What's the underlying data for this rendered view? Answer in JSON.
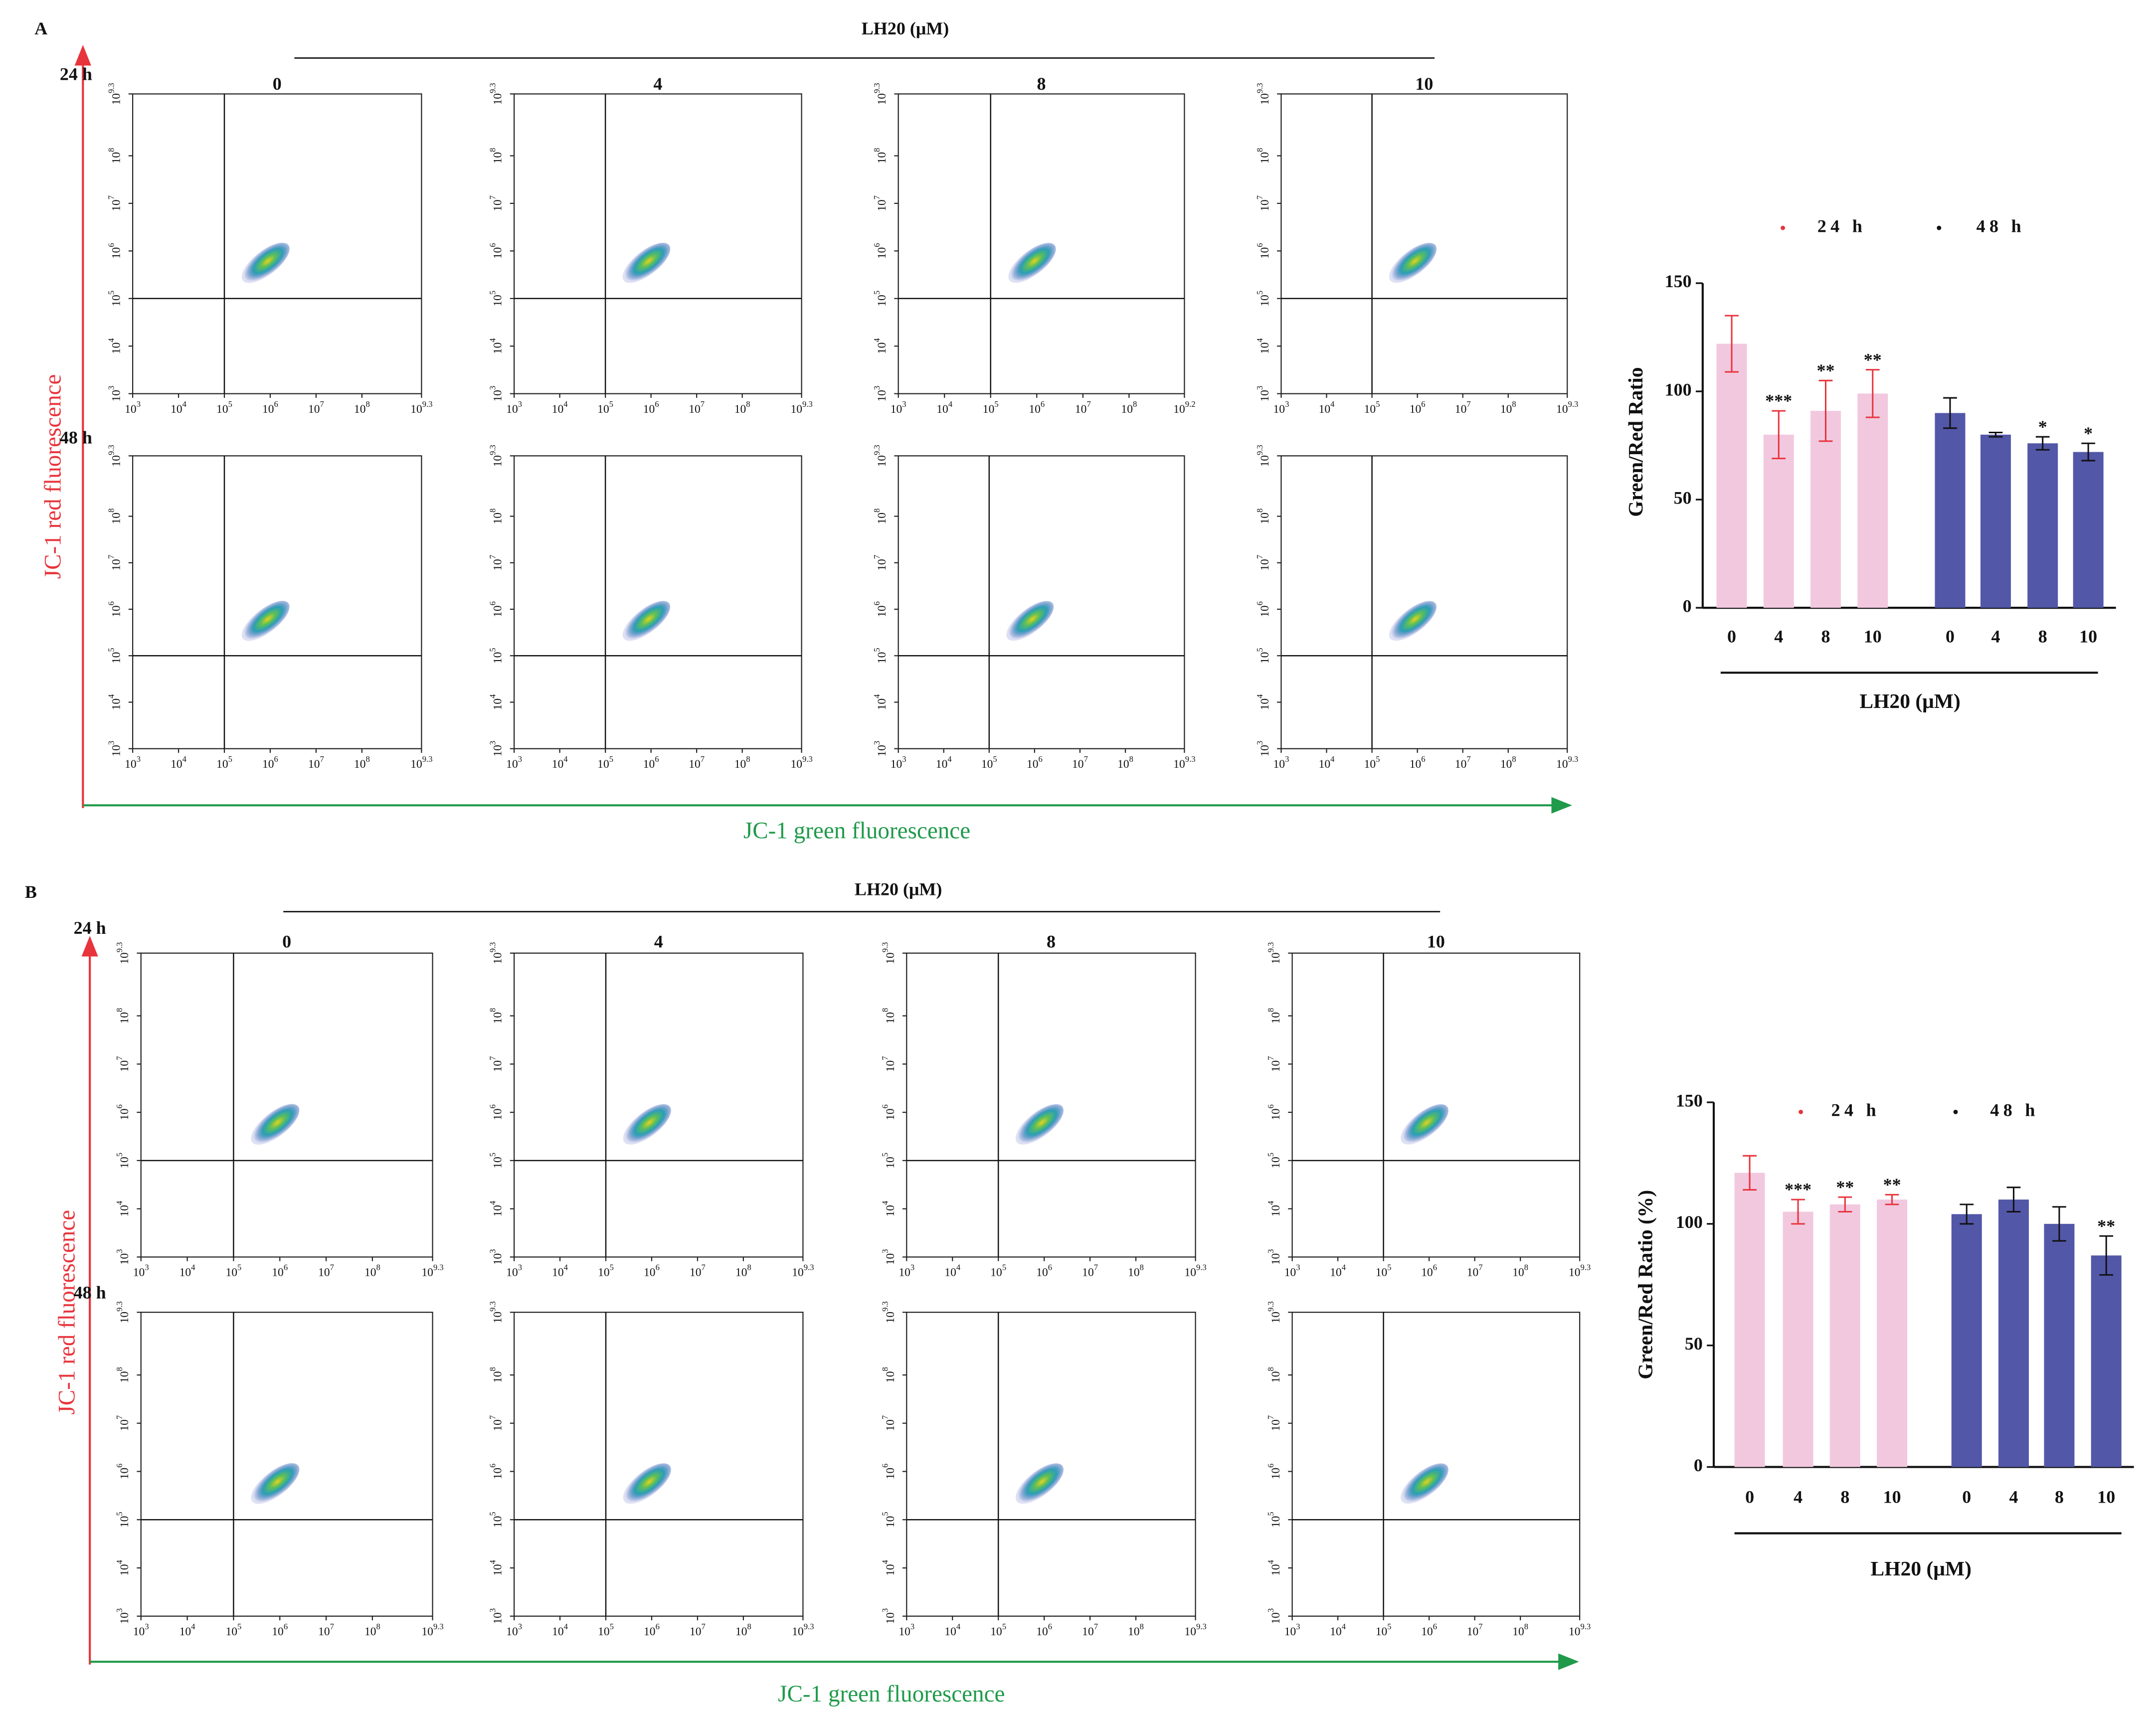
{
  "panels": [
    {
      "letter": "A",
      "title": "LH20 (μM)",
      "columns": [
        "0",
        "4",
        "8",
        "10"
      ],
      "rows": [
        "24 h",
        "48 h"
      ],
      "y_axis_label": "JC-1 red fluorescence",
      "x_axis_label": "JC-1 green fluorescence",
      "tick_base": "10",
      "plots": [
        {
          "x_exponents": [
            "3",
            "4",
            "5",
            "6",
            "7",
            "8",
            "9.3"
          ],
          "y_exponents": [
            "3",
            "4",
            "5",
            "6",
            "7",
            "8",
            "9.3"
          ]
        },
        {
          "x_exponents": [
            "3",
            "4",
            "5",
            "6",
            "7",
            "8",
            "9.3"
          ],
          "y_exponents": [
            "3",
            "4",
            "5",
            "6",
            "7",
            "8",
            "9.3"
          ]
        },
        {
          "x_exponents": [
            "3",
            "4",
            "5",
            "6",
            "7",
            "8",
            "9.2"
          ],
          "y_exponents": [
            "3",
            "4",
            "5",
            "6",
            "7",
            "8",
            "9.3"
          ]
        },
        {
          "x_exponents": [
            "3",
            "4",
            "5",
            "6",
            "7",
            "8",
            "9.3"
          ],
          "y_exponents": [
            "3",
            "4",
            "5",
            "6",
            "7",
            "8",
            "9.3"
          ]
        },
        {
          "x_exponents": [
            "3",
            "4",
            "5",
            "6",
            "7",
            "8",
            "9.3"
          ],
          "y_exponents": [
            "3",
            "4",
            "5",
            "6",
            "7",
            "8",
            "9.3"
          ]
        },
        {
          "x_exponents": [
            "3",
            "4",
            "5",
            "6",
            "7",
            "8",
            "9.3"
          ],
          "y_exponents": [
            "3",
            "4",
            "5",
            "6",
            "7",
            "8",
            "9.3"
          ]
        },
        {
          "x_exponents": [
            "3",
            "4",
            "5",
            "6",
            "7",
            "8",
            "9.3"
          ],
          "y_exponents": [
            "3",
            "4",
            "5",
            "6",
            "7",
            "8",
            "9.3"
          ]
        },
        {
          "x_exponents": [
            "3",
            "4",
            "5",
            "6",
            "7",
            "8",
            "9.3"
          ],
          "y_exponents": [
            "3",
            "4",
            "5",
            "6",
            "7",
            "8",
            "9.3"
          ]
        }
      ]
    },
    {
      "letter": "B",
      "title": "LH20 (μM)",
      "columns": [
        "0",
        "4",
        "8",
        "10"
      ],
      "rows": [
        "24 h",
        "48 h"
      ],
      "y_axis_label": "JC-1 red fluorescence",
      "x_axis_label": "JC-1 green fluorescence",
      "tick_base": "10",
      "plots": [
        {
          "x_exponents": [
            "3",
            "4",
            "5",
            "6",
            "7",
            "8",
            "9.3"
          ],
          "y_exponents": [
            "3",
            "4",
            "5",
            "6",
            "7",
            "8",
            "9.3"
          ]
        },
        {
          "x_exponents": [
            "3",
            "4",
            "5",
            "6",
            "7",
            "8",
            "9.3"
          ],
          "y_exponents": [
            "3",
            "4",
            "5",
            "6",
            "7",
            "8",
            "9.3"
          ]
        },
        {
          "x_exponents": [
            "3",
            "4",
            "5",
            "6",
            "7",
            "8",
            "9.3"
          ],
          "y_exponents": [
            "3",
            "4",
            "5",
            "6",
            "7",
            "8",
            "9.3"
          ]
        },
        {
          "x_exponents": [
            "3",
            "4",
            "5",
            "6",
            "7",
            "8",
            "9.3"
          ],
          "y_exponents": [
            "3",
            "4",
            "5",
            "6",
            "7",
            "8",
            "9.3"
          ]
        },
        {
          "x_exponents": [
            "3",
            "4",
            "5",
            "6",
            "7",
            "8",
            "9.3"
          ],
          "y_exponents": [
            "3",
            "4",
            "5",
            "6",
            "7",
            "8",
            "9.3"
          ]
        },
        {
          "x_exponents": [
            "3",
            "4",
            "5",
            "6",
            "7",
            "8",
            "9.3"
          ],
          "y_exponents": [
            "3",
            "4",
            "5",
            "6",
            "7",
            "8",
            "9.3"
          ]
        },
        {
          "x_exponents": [
            "3",
            "4",
            "5",
            "6",
            "7",
            "8",
            "9.3"
          ],
          "y_exponents": [
            "3",
            "4",
            "5",
            "6",
            "7",
            "8",
            "9.3"
          ]
        },
        {
          "x_exponents": [
            "3",
            "4",
            "5",
            "6",
            "7",
            "8",
            "9.3"
          ],
          "y_exponents": [
            "3",
            "4",
            "5",
            "6",
            "7",
            "8",
            "9.3"
          ]
        }
      ]
    }
  ],
  "chart_data": [
    {
      "type": "bar",
      "y_label": "Green/Red Ratio",
      "x_label": "LH20 (μM)",
      "categories": [
        "0",
        "4",
        "8",
        "10"
      ],
      "ylim": [
        0,
        150
      ],
      "yticks": [
        0,
        50,
        100,
        150
      ],
      "legend": "top",
      "series": [
        {
          "name": "24 h",
          "color": "#f2c8df",
          "marker_color": "#e8343c",
          "values": [
            122,
            80,
            91,
            99
          ],
          "errors": [
            13,
            11,
            14,
            11
          ],
          "significance": [
            null,
            "***",
            "**",
            "**"
          ]
        },
        {
          "name": "48 h",
          "color": "#5257a8",
          "marker_color": "#111111",
          "values": [
            90,
            80,
            76,
            72
          ],
          "errors": [
            7,
            1,
            3,
            4
          ],
          "significance": [
            null,
            null,
            "*",
            "*"
          ]
        }
      ]
    },
    {
      "type": "bar",
      "y_label": "Green/Red Ratio (%)",
      "x_label": "LH20 (μM)",
      "categories": [
        "0",
        "4",
        "8",
        "10"
      ],
      "ylim": [
        0,
        150
      ],
      "yticks": [
        0,
        50,
        100,
        150
      ],
      "legend": "top",
      "series": [
        {
          "name": "24 h",
          "color": "#f2c8df",
          "marker_color": "#e8343c",
          "values": [
            121,
            105,
            108,
            110
          ],
          "errors": [
            7,
            5,
            3,
            2
          ],
          "significance": [
            null,
            "***",
            "**",
            "**"
          ]
        },
        {
          "name": "48 h",
          "color": "#5257a8",
          "marker_color": "#111111",
          "values": [
            104,
            110,
            100,
            87
          ],
          "errors": [
            4,
            5,
            7,
            8
          ],
          "significance": [
            null,
            null,
            null,
            "**"
          ]
        }
      ]
    }
  ]
}
